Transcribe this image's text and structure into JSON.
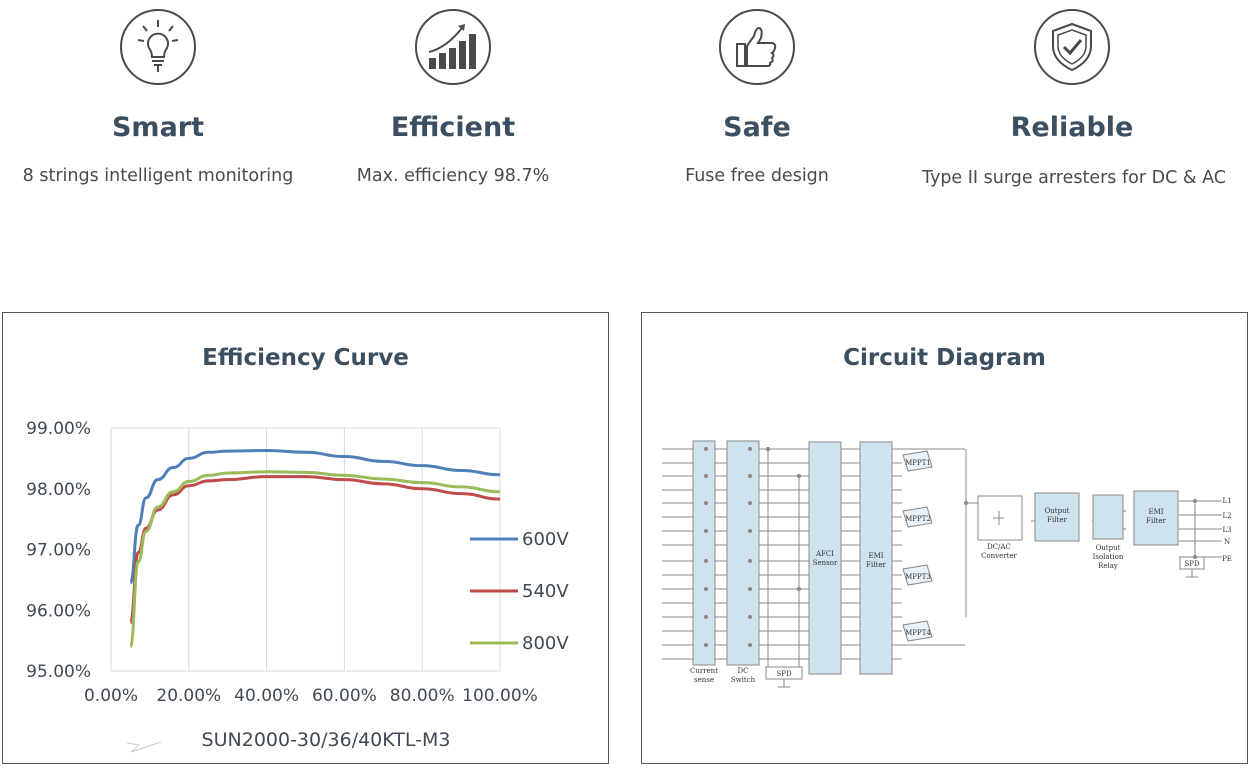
{
  "features": [
    {
      "icon": "lightbulb-icon",
      "title": "Smart",
      "desc": "8 strings intelligent monitoring"
    },
    {
      "icon": "growth-chart-icon",
      "title": "Efficient",
      "desc": "Max. efficiency 98.7%"
    },
    {
      "icon": "thumbs-up-icon",
      "title": "Safe",
      "desc": "Fuse free design"
    },
    {
      "icon": "shield-check-icon",
      "title": "Reliable",
      "desc": "Type II surge arresters for DC & AC"
    }
  ],
  "efficiency": {
    "title": "Efficiency Curve",
    "subtitle": "SUN2000-30/36/40KTL-M3"
  },
  "chart_data": {
    "type": "line",
    "title": "Efficiency Curve",
    "xlabel": "SUN2000-30/36/40KTL-M3",
    "ylabel": "",
    "x_tick_labels": [
      "0.00%",
      "20.00%",
      "40.00%",
      "60.00%",
      "80.00%",
      "100.00%"
    ],
    "y_tick_labels": [
      "95.00%",
      "96.00%",
      "97.00%",
      "98.00%",
      "99.00%"
    ],
    "xlim": [
      0,
      100
    ],
    "ylim": [
      95,
      99
    ],
    "grid": "vertical",
    "legend": "right",
    "series": [
      {
        "name": "600V",
        "color": "#4e7fb8",
        "x": [
          5,
          7,
          9,
          12,
          16,
          20,
          25,
          30,
          40,
          50,
          60,
          70,
          80,
          90,
          100
        ],
        "y": [
          96.45,
          97.4,
          97.85,
          98.15,
          98.35,
          98.5,
          98.6,
          98.62,
          98.63,
          98.6,
          98.53,
          98.45,
          98.38,
          98.3,
          98.23
        ]
      },
      {
        "name": "540V",
        "color": "#bf4b4b",
        "x": [
          5,
          7,
          9,
          12,
          16,
          20,
          25,
          30,
          40,
          50,
          60,
          70,
          80,
          90,
          100
        ],
        "y": [
          95.8,
          96.95,
          97.35,
          97.65,
          97.9,
          98.05,
          98.13,
          98.15,
          98.2,
          98.2,
          98.15,
          98.08,
          98.0,
          97.92,
          97.83
        ]
      },
      {
        "name": "800V",
        "color": "#9bbb59",
        "x": [
          5,
          7,
          9,
          12,
          16,
          20,
          25,
          30,
          40,
          50,
          60,
          70,
          80,
          90,
          100
        ],
        "y": [
          95.4,
          96.8,
          97.3,
          97.7,
          97.95,
          98.12,
          98.22,
          98.26,
          98.28,
          98.27,
          98.22,
          98.16,
          98.1,
          98.03,
          97.95
        ]
      }
    ]
  },
  "circuit": {
    "title": "Circuit Diagram",
    "labels": {
      "current_sense": [
        "Current",
        "sense"
      ],
      "dc_switch": [
        "DC",
        "Switch"
      ],
      "spd": "SPD",
      "afci": [
        "AFCI",
        "Sensor"
      ],
      "emi1": [
        "EMI",
        "Filter"
      ],
      "mppt": [
        "MPPT1",
        "MPPT2",
        "MPPT3",
        "MPPT4"
      ],
      "dcac": [
        "DC/AC",
        "Converter"
      ],
      "output_filter": [
        "Output",
        "Filter"
      ],
      "relay": [
        "Output",
        "Isolation",
        "Relay"
      ],
      "emi2": [
        "EMI",
        "Filter"
      ],
      "ac_spd": "SPD",
      "outputs": [
        "L1",
        "L2",
        "L3",
        "N",
        "PE"
      ]
    }
  }
}
